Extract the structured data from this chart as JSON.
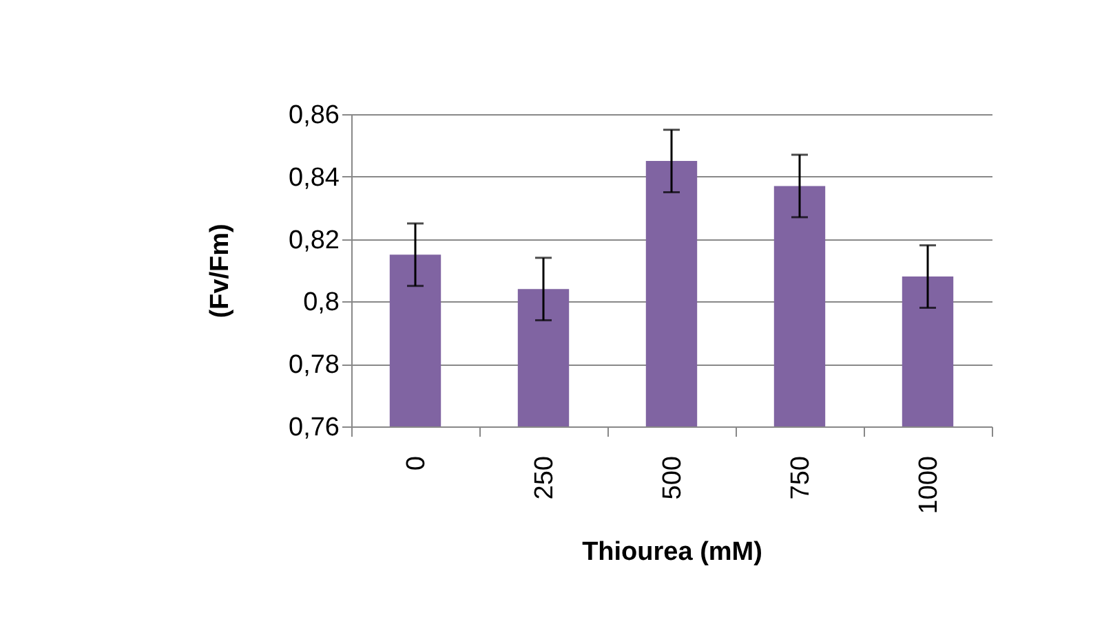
{
  "chart_data": {
    "type": "bar",
    "xlabel": "Thiourea (mM)",
    "ylabel": "(Fv/Fm)",
    "categories": [
      "0",
      "250",
      "500",
      "750",
      "1000"
    ],
    "values": [
      0.815,
      0.804,
      0.845,
      0.837,
      0.808
    ],
    "errors": [
      0.01,
      0.01,
      0.01,
      0.01,
      0.01
    ],
    "color": "#8064a2",
    "ylim": [
      0.76,
      0.86
    ],
    "yticks": [
      {
        "value": 0.76,
        "label": "0,76"
      },
      {
        "value": 0.78,
        "label": "0,78"
      },
      {
        "value": 0.8,
        "label": "0,8"
      },
      {
        "value": 0.82,
        "label": "0,82"
      },
      {
        "value": 0.84,
        "label": "0,84"
      },
      {
        "value": 0.86,
        "label": "0,86"
      }
    ],
    "grid": "y"
  }
}
